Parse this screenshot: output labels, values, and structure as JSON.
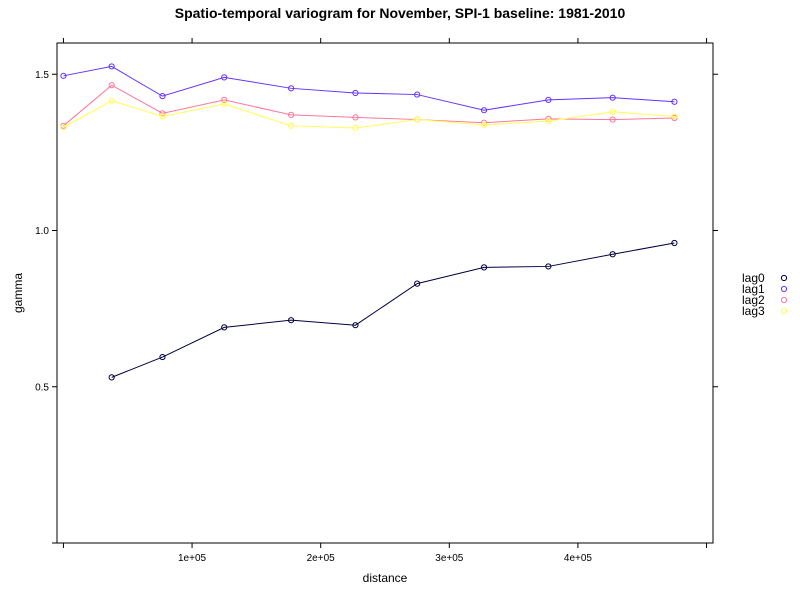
{
  "chart_data": {
    "type": "line",
    "title": "Spatio-temporal variogram for November, SPI-1 baseline: 1981-2010",
    "xlabel": "distance",
    "ylabel": "gamma",
    "xlim": [
      -5000,
      505000
    ],
    "ylim": [
      0.0,
      1.6
    ],
    "x_ticks": [
      {
        "value": 100000,
        "label": "1e+05"
      },
      {
        "value": 200000,
        "label": "2e+05"
      },
      {
        "value": 300000,
        "label": "3e+05"
      },
      {
        "value": 400000,
        "label": "4e+05"
      }
    ],
    "y_ticks": [
      {
        "value": 0.5,
        "label": "0.5"
      },
      {
        "value": 1.0,
        "label": "1.0"
      },
      {
        "value": 1.5,
        "label": "1.5"
      }
    ],
    "legend_position": "right",
    "series": [
      {
        "name": "lag0",
        "color": "#000040",
        "x": [
          37500,
          77000,
          125000,
          177000,
          227000,
          275000,
          327000,
          377000,
          427000,
          475000
        ],
        "y": [
          0.53,
          0.595,
          0.69,
          0.713,
          0.697,
          0.83,
          0.882,
          0.885,
          0.924,
          0.96
        ]
      },
      {
        "name": "lag1",
        "color": "#6633ff",
        "x": [
          0,
          37500,
          77000,
          125000,
          177000,
          227000,
          275000,
          327000,
          377000,
          427000,
          475000
        ],
        "y": [
          1.495,
          1.525,
          1.43,
          1.49,
          1.455,
          1.44,
          1.435,
          1.385,
          1.418,
          1.425,
          1.412
        ]
      },
      {
        "name": "lag2",
        "color": "#ff7799",
        "x": [
          0,
          37500,
          77000,
          125000,
          177000,
          227000,
          275000,
          327000,
          377000,
          427000,
          475000
        ],
        "y": [
          1.335,
          1.465,
          1.375,
          1.418,
          1.37,
          1.362,
          1.355,
          1.345,
          1.357,
          1.355,
          1.36
        ]
      },
      {
        "name": "lag3",
        "color": "#ffff55",
        "x": [
          0,
          37500,
          77000,
          125000,
          177000,
          227000,
          275000,
          327000,
          377000,
          427000,
          475000
        ],
        "y": [
          1.33,
          1.415,
          1.365,
          1.405,
          1.335,
          1.328,
          1.355,
          1.338,
          1.35,
          1.38,
          1.365
        ]
      }
    ]
  }
}
